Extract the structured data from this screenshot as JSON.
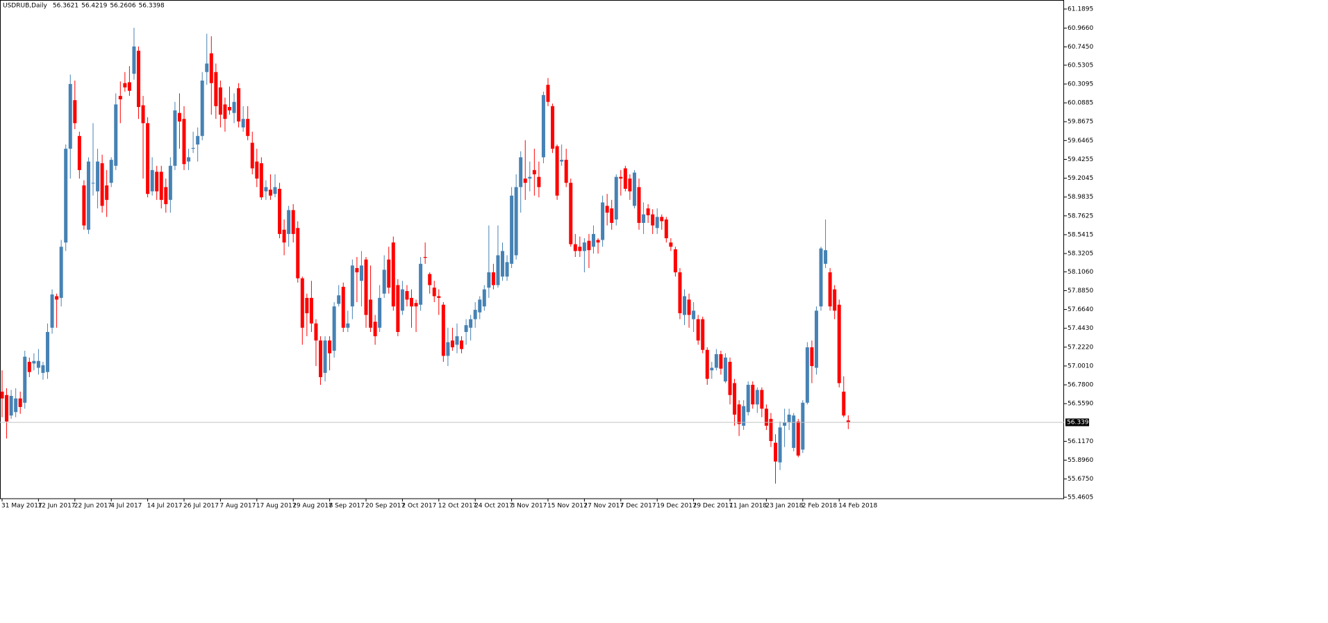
{
  "chart_data": {
    "type": "candlestick",
    "title": "USDRUB,Daily",
    "up_color": "#4682b4",
    "down_color": "#ff0000",
    "ylim": [
      55.444,
      61.271
    ],
    "yticks": [
      61.1895,
      {
        "value": 60.966,
        "label": "60.9660"
      },
      {
        "value": 60.745,
        "label": "60.7450"
      },
      60.5305,
      60.3095,
      60.0885,
      59.8675,
      59.6465,
      59.4255,
      59.2045,
      58.9835,
      58.7625,
      58.5415,
      58.3205,
      {
        "value": 58.106,
        "label": "58.1060"
      },
      {
        "value": 57.885,
        "label": "57.8850"
      },
      {
        "value": 57.664,
        "label": "57.6640"
      },
      {
        "value": 57.443,
        "label": "57.4430"
      },
      {
        "value": 57.222,
        "label": "57.2220"
      },
      {
        "value": 57.001,
        "label": "57.0010"
      },
      {
        "value": 56.78,
        "label": "56.7800"
      },
      {
        "value": 56.559,
        "label": "56.5590"
      },
      {
        "value": 56.117,
        "label": "56.1170"
      },
      {
        "value": 55.896,
        "label": "55.8960"
      },
      {
        "value": 55.675,
        "label": "55.6750"
      },
      55.4605
    ],
    "categories": [
      "31 May 2017",
      null,
      null,
      null,
      null,
      null,
      null,
      null,
      "12 Jun 2017",
      null,
      null,
      null,
      null,
      null,
      null,
      null,
      "22 Jun 2017",
      null,
      null,
      null,
      null,
      null,
      null,
      null,
      "4 Jul 2017",
      null,
      null,
      null,
      null,
      null,
      null,
      null,
      "14 Jul 2017",
      null,
      null,
      null,
      null,
      null,
      null,
      null,
      "26 Jul 2017",
      null,
      null,
      null,
      null,
      null,
      null,
      null,
      "7 Aug 2017",
      null,
      null,
      null,
      null,
      null,
      null,
      null,
      "17 Aug 2017",
      null,
      null,
      null,
      null,
      null,
      null,
      null,
      "29 Aug 2017",
      null,
      null,
      null,
      null,
      null,
      null,
      null,
      "8 Sep 2017",
      null,
      null,
      null,
      null,
      null,
      null,
      null,
      "20 Sep 2017",
      null,
      null,
      null,
      null,
      null,
      null,
      null,
      "2 Oct 2017",
      null,
      null,
      null,
      null,
      null,
      null,
      null,
      "12 Oct 2017",
      null,
      null,
      null,
      null,
      null,
      null,
      null,
      "24 Oct 2017",
      null,
      null,
      null,
      null,
      null,
      null,
      null,
      "3 Nov 2017",
      null,
      null,
      null,
      null,
      null,
      null,
      null,
      "15 Nov 2017",
      null,
      null,
      null,
      null,
      null,
      null,
      null,
      "27 Nov 2017",
      null,
      null,
      null,
      null,
      null,
      null,
      null,
      "7 Dec 2017",
      null,
      null,
      null,
      null,
      null,
      null,
      null,
      "19 Dec 2017",
      null,
      null,
      null,
      null,
      null,
      null,
      null,
      "29 Dec 2017",
      null,
      null,
      null,
      null,
      null,
      null,
      null,
      "11 Jan 2018",
      null,
      null,
      null,
      null,
      null,
      null,
      null,
      "23 Jan 2018",
      null,
      null,
      null,
      null,
      null,
      null,
      null,
      "2 Feb 2018",
      null,
      null,
      null,
      null,
      null,
      null,
      null,
      "14 Feb 2018",
      null,
      null
    ],
    "open": [
      56.7,
      56.66,
      56.42,
      56.46,
      56.62,
      56.57,
      57.05,
      57.03,
      56.98,
      56.92,
      56.93,
      57.45,
      57.82,
      57.8,
      58.45,
      59.55,
      60.12,
      59.7,
      59.12,
      58.6,
      59.15,
      59.05,
      59.38,
      59.12,
      59.15,
      59.35,
      60.17,
      60.32,
      60.33,
      60.43,
      60.7,
      60.06,
      59.85,
      59.05,
      59.28,
      59.28,
      59.1,
      58.95,
      59.35,
      59.97,
      59.9,
      59.4,
      59.55,
      59.6,
      59.7,
      60.45,
      60.67,
      60.45,
      60.27,
      60.07,
      60.04,
      59.97,
      60.26,
      59.8,
      59.9,
      59.62,
      59.4,
      59.38,
      59.05,
      59.07,
      59.02,
      59.08,
      58.6,
      58.55,
      58.83,
      58.62,
      58.03,
      57.8,
      57.8,
      57.5,
      57.3,
      56.92,
      57.3,
      57.18,
      57.73,
      57.93,
      57.45,
      57.7,
      58.15,
      58.0,
      58.25,
      57.78,
      57.52,
      57.45,
      57.85,
      58.25,
      58.45,
      57.95,
      57.65,
      57.88,
      57.8,
      57.74,
      57.72,
      58.28,
      58.08,
      57.92,
      57.82,
      57.72,
      57.12,
      57.3,
      57.25,
      57.3,
      57.4,
      57.45,
      57.55,
      57.63,
      57.7,
      57.92,
      58.1,
      57.95,
      58.05,
      58.05,
      58.2,
      58.3,
      59.1,
      59.2,
      59.2,
      59.3,
      59.22,
      59.45,
      60.3,
      60.05,
      59.58,
      59.4,
      59.42,
      59.15,
      58.43,
      58.4,
      58.35,
      58.47,
      58.4,
      58.48,
      58.48,
      58.88,
      58.85,
      58.72,
      59.22,
      59.32,
      59.2,
      58.88,
      59.1,
      58.68,
      58.85,
      58.78,
      58.62,
      58.75,
      58.72,
      58.45,
      58.37,
      58.1,
      57.6,
      57.78,
      57.55,
      57.55,
      57.55,
      57.19,
      56.95,
      56.98,
      57.14,
      56.82,
      57.05,
      56.8,
      56.55,
      56.3,
      56.46,
      56.78,
      56.55,
      56.72,
      56.5,
      56.38,
      56.1,
      55.87,
      56.3,
      56.34,
      56.04,
      56.35,
      56.02,
      56.57,
      57.22,
      56.98,
      57.7,
      58.2,
      58.1,
      57.9,
      57.72,
      56.7,
      56.3621
    ],
    "high": [
      56.95,
      56.74,
      56.72,
      56.74,
      56.7,
      57.18,
      57.1,
      57.15,
      57.2,
      57.05,
      57.5,
      57.9,
      57.85,
      58.48,
      59.6,
      60.42,
      60.35,
      59.75,
      59.18,
      59.45,
      59.85,
      59.55,
      59.48,
      59.3,
      59.45,
      60.2,
      60.34,
      60.45,
      60.52,
      60.97,
      60.75,
      60.17,
      59.92,
      59.45,
      59.35,
      59.35,
      59.2,
      59.45,
      60.1,
      60.2,
      60.05,
      59.55,
      59.75,
      59.8,
      60.45,
      60.9,
      60.87,
      60.55,
      60.35,
      60.15,
      60.28,
      60.2,
      60.32,
      60.05,
      60.05,
      59.75,
      59.55,
      59.45,
      59.18,
      59.25,
      59.25,
      59.15,
      58.72,
      58.88,
      58.9,
      58.7,
      58.05,
      57.85,
      58.0,
      57.55,
      57.35,
      57.35,
      57.35,
      57.75,
      57.95,
      57.98,
      57.65,
      58.25,
      58.28,
      58.35,
      58.28,
      58.18,
      57.6,
      57.95,
      58.3,
      58.4,
      58.52,
      58.02,
      58.0,
      57.95,
      57.9,
      57.78,
      58.28,
      58.45,
      58.1,
      58.0,
      57.9,
      57.75,
      57.45,
      57.45,
      57.5,
      57.35,
      57.55,
      57.6,
      57.75,
      57.82,
      57.95,
      58.65,
      58.2,
      58.65,
      58.45,
      58.3,
      59.1,
      59.25,
      59.52,
      59.65,
      59.4,
      59.55,
      59.4,
      60.22,
      60.38,
      60.08,
      59.6,
      59.6,
      59.55,
      59.2,
      58.55,
      58.52,
      58.5,
      58.55,
      58.65,
      58.5,
      59.0,
      59.02,
      58.95,
      59.25,
      59.3,
      59.35,
      59.25,
      59.3,
      59.2,
      58.92,
      58.9,
      58.84,
      58.85,
      58.78,
      58.75,
      58.5,
      58.4,
      58.15,
      57.9,
      57.85,
      57.75,
      57.6,
      57.58,
      57.22,
      57.05,
      57.2,
      57.18,
      57.15,
      57.1,
      56.85,
      56.6,
      56.6,
      56.82,
      56.82,
      56.75,
      56.75,
      56.55,
      56.45,
      56.2,
      56.35,
      56.5,
      56.5,
      56.45,
      56.38,
      56.6,
      57.28,
      57.3,
      57.7,
      58.4,
      58.72,
      58.15,
      57.95,
      57.78,
      56.88,
      56.4219
    ],
    "low": [
      56.4,
      56.15,
      56.38,
      56.4,
      56.44,
      56.5,
      56.87,
      56.95,
      56.9,
      56.84,
      56.85,
      57.38,
      57.45,
      57.7,
      58.35,
      59.2,
      59.78,
      59.2,
      58.6,
      58.55,
      59.0,
      58.85,
      58.8,
      58.75,
      59.1,
      59.3,
      59.85,
      60.22,
      60.17,
      60.36,
      59.9,
      59.2,
      58.98,
      59.0,
      58.95,
      58.85,
      58.8,
      58.8,
      59.3,
      59.55,
      59.3,
      59.3,
      59.5,
      59.4,
      59.65,
      60.3,
      59.95,
      59.9,
      59.8,
      59.75,
      59.95,
      59.85,
      59.8,
      59.75,
      59.65,
      59.25,
      59.1,
      58.95,
      58.95,
      58.95,
      58.98,
      58.5,
      58.3,
      58.4,
      58.45,
      57.98,
      57.25,
      57.35,
      57.4,
      57.0,
      56.78,
      56.82,
      56.95,
      57.1,
      57.7,
      57.4,
      57.4,
      57.55,
      57.75,
      57.7,
      57.45,
      57.4,
      57.25,
      57.4,
      57.8,
      57.85,
      57.65,
      57.35,
      57.6,
      57.7,
      57.45,
      57.4,
      57.65,
      58.2,
      57.85,
      57.75,
      57.6,
      57.05,
      57.0,
      57.18,
      57.15,
      57.15,
      57.25,
      57.3,
      57.45,
      57.55,
      57.65,
      57.8,
      57.9,
      57.92,
      58.0,
      58.0,
      58.15,
      58.25,
      58.8,
      58.95,
      59.05,
      59.0,
      58.98,
      59.38,
      60.05,
      59.5,
      58.95,
      59.35,
      59.1,
      58.4,
      58.28,
      58.28,
      58.1,
      58.15,
      58.32,
      58.32,
      58.4,
      58.65,
      58.6,
      58.65,
      59.0,
      59.05,
      58.95,
      58.85,
      58.6,
      58.55,
      58.68,
      58.55,
      58.55,
      58.6,
      58.45,
      58.35,
      58.05,
      57.55,
      57.48,
      57.45,
      57.4,
      57.25,
      57.15,
      56.78,
      56.85,
      56.95,
      56.9,
      56.8,
      56.55,
      56.3,
      56.18,
      56.25,
      56.42,
      56.5,
      56.45,
      56.4,
      56.25,
      56.05,
      55.62,
      55.78,
      56.05,
      56.25,
      56.0,
      55.93,
      55.98,
      56.55,
      56.8,
      56.9,
      57.65,
      58.15,
      57.65,
      57.55,
      56.75,
      56.4,
      56.2606
    ],
    "close": [
      56.62,
      56.35,
      56.65,
      56.62,
      56.52,
      57.11,
      56.93,
      57.06,
      57.06,
      57.01,
      57.4,
      57.84,
      57.78,
      58.4,
      59.55,
      60.31,
      59.85,
      59.3,
      58.65,
      59.4,
      59.15,
      59.4,
      58.88,
      58.95,
      59.42,
      60.07,
      60.13,
      60.27,
      60.23,
      60.75,
      60.04,
      59.85,
      59.02,
      59.3,
      59.05,
      58.95,
      58.9,
      59.35,
      60.0,
      59.87,
      59.37,
      59.45,
      59.56,
      59.7,
      60.35,
      60.55,
      60.32,
      60.05,
      59.95,
      59.9,
      60.0,
      60.1,
      59.87,
      59.9,
      59.7,
      59.32,
      59.2,
      58.98,
      59.1,
      59.0,
      59.1,
      58.55,
      58.45,
      58.83,
      58.55,
      58.03,
      57.45,
      57.62,
      57.5,
      57.3,
      56.87,
      57.3,
      57.15,
      57.7,
      57.83,
      57.45,
      57.5,
      58.18,
      58.1,
      58.18,
      57.6,
      57.45,
      57.35,
      57.8,
      58.13,
      57.92,
      57.7,
      57.4,
      57.9,
      57.78,
      57.7,
      57.7,
      58.2,
      58.27,
      57.95,
      57.82,
      57.8,
      57.12,
      57.28,
      57.22,
      57.35,
      57.2,
      57.48,
      57.55,
      57.66,
      57.78,
      57.9,
      58.1,
      57.95,
      58.3,
      58.35,
      58.22,
      59.0,
      59.1,
      59.45,
      59.15,
      59.22,
      59.25,
      59.1,
      60.18,
      60.1,
      59.55,
      59.0,
      59.42,
      59.15,
      58.43,
      58.35,
      58.35,
      58.45,
      58.36,
      58.55,
      58.45,
      58.92,
      58.8,
      58.68,
      59.22,
      59.2,
      59.08,
      59.05,
      59.27,
      58.68,
      58.78,
      58.77,
      58.65,
      58.75,
      58.7,
      58.5,
      58.4,
      58.1,
      57.62,
      57.82,
      57.6,
      57.65,
      57.3,
      57.19,
      56.85,
      56.98,
      57.14,
      56.97,
      57.1,
      56.66,
      56.43,
      56.32,
      56.53,
      56.78,
      56.55,
      56.72,
      56.5,
      56.3,
      56.12,
      55.88,
      56.28,
      56.34,
      56.43,
      56.42,
      55.95,
      56.57,
      57.22,
      57.0,
      57.65,
      58.38,
      58.36,
      57.7,
      57.65,
      56.8,
      56.42,
      56.3398
    ]
  }
}
